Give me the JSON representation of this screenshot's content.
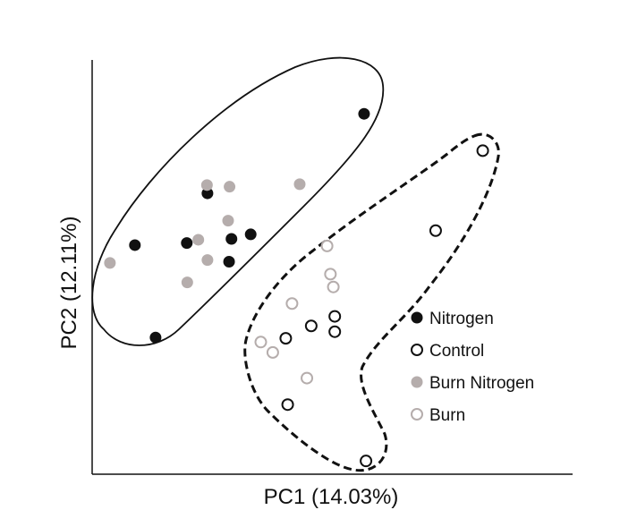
{
  "chart_data": {
    "type": "scatter",
    "title": "",
    "xlabel": "PC1 (14.03%)",
    "ylabel": "PC2 (12.11%)",
    "xlim": [
      0,
      100
    ],
    "ylim": [
      0,
      100
    ],
    "grid": false,
    "ticks": false,
    "legend_placement": "right",
    "series": [
      {
        "name": "Nitrogen",
        "marker": "filled-circle",
        "fill": "#111111",
        "stroke": "#111111",
        "points": [
          {
            "x": 56.6,
            "y": 87.0
          },
          {
            "x": 24.0,
            "y": 67.8
          },
          {
            "x": 33.0,
            "y": 57.9
          },
          {
            "x": 19.7,
            "y": 55.8
          },
          {
            "x": 29.0,
            "y": 56.8
          },
          {
            "x": 28.5,
            "y": 51.3
          },
          {
            "x": 8.9,
            "y": 55.3
          },
          {
            "x": 13.2,
            "y": 33.0
          }
        ]
      },
      {
        "name": "Control",
        "marker": "open-circle",
        "fill": "#ffffff",
        "stroke": "#111111",
        "points": [
          {
            "x": 81.3,
            "y": 78.1
          },
          {
            "x": 71.5,
            "y": 58.8
          },
          {
            "x": 50.5,
            "y": 38.1
          },
          {
            "x": 45.6,
            "y": 35.8
          },
          {
            "x": 50.5,
            "y": 34.4
          },
          {
            "x": 40.3,
            "y": 32.8
          },
          {
            "x": 40.7,
            "y": 16.8
          },
          {
            "x": 57.0,
            "y": 3.2
          }
        ]
      },
      {
        "name": "Burn Nitrogen",
        "marker": "filled-circle",
        "fill": "#b5adac",
        "stroke": "#b5adac",
        "points": [
          {
            "x": 23.9,
            "y": 69.8
          },
          {
            "x": 28.6,
            "y": 69.4
          },
          {
            "x": 43.2,
            "y": 70.0
          },
          {
            "x": 28.3,
            "y": 61.2
          },
          {
            "x": 22.1,
            "y": 56.6
          },
          {
            "x": 24.0,
            "y": 51.7
          },
          {
            "x": 3.7,
            "y": 51.0
          },
          {
            "x": 19.8,
            "y": 46.3
          }
        ]
      },
      {
        "name": "Burn",
        "marker": "open-circle",
        "fill": "#ffffff",
        "stroke": "#b5adac",
        "points": [
          {
            "x": 48.9,
            "y": 55.1
          },
          {
            "x": 49.6,
            "y": 48.3
          },
          {
            "x": 50.2,
            "y": 45.2
          },
          {
            "x": 41.6,
            "y": 41.2
          },
          {
            "x": 35.1,
            "y": 31.9
          },
          {
            "x": 37.6,
            "y": 29.4
          },
          {
            "x": 44.7,
            "y": 23.2
          }
        ]
      }
    ]
  }
}
